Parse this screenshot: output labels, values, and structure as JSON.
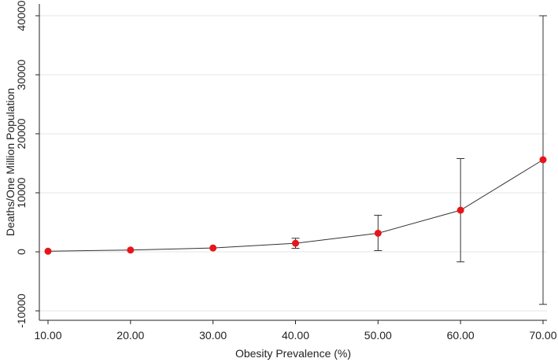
{
  "chart_data": {
    "type": "line",
    "title": "",
    "xlabel": "Obesity Prevalence (%)",
    "ylabel": "Deaths/One Million Population",
    "x_ticks": [
      "10.00",
      "20.00",
      "30.00",
      "40.00",
      "50.00",
      "60.00",
      "70.00"
    ],
    "y_ticks": [
      -10000,
      0,
      10000,
      20000,
      30000,
      40000
    ],
    "xlim": [
      10,
      70
    ],
    "ylim": [
      -10000,
      40000
    ],
    "grid": true,
    "series": [
      {
        "x": [
          10,
          20,
          30,
          40,
          50,
          60,
          70
        ],
        "y": [
          100,
          300,
          650,
          1450,
          3150,
          7050,
          15600
        ],
        "ci_low": [
          100,
          300,
          650,
          600,
          200,
          -1700,
          -8900
        ],
        "ci_high": [
          100,
          300,
          650,
          2300,
          6200,
          15800,
          40000
        ]
      }
    ],
    "colors": {
      "point": "#e8141c",
      "line": "#333333",
      "grid": "#e6e6e6",
      "axis": "#222222"
    }
  }
}
